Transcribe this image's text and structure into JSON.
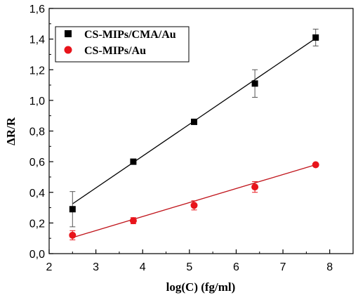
{
  "chart_data": {
    "type": "scatter",
    "xlabel": "log(C) (fg/ml)",
    "ylabel": "ΔR/R",
    "xlim": [
      2,
      8.5
    ],
    "ylim": [
      0,
      1.6
    ],
    "x_ticks": [
      2,
      3,
      4,
      5,
      6,
      7,
      8
    ],
    "x_tick_labels": [
      "2",
      "3",
      "4",
      "5",
      "6",
      "7",
      "8"
    ],
    "y_ticks": [
      0,
      0.2,
      0.4,
      0.6,
      0.8,
      1.0,
      1.2,
      1.4,
      1.6
    ],
    "y_tick_labels": [
      "0,0",
      "0,2",
      "0,4",
      "0,6",
      "0,8",
      "1,0",
      "1,2",
      "1,4",
      "1,6"
    ],
    "grid": false,
    "legend_position": "top-left",
    "series": [
      {
        "name": "CS-MIPs/CMA/Au",
        "marker": "square",
        "color": "#000000",
        "fit_color": "#000000",
        "x": [
          2.5,
          3.8,
          5.1,
          6.4,
          7.7
        ],
        "y": [
          0.29,
          0.6,
          0.86,
          1.11,
          1.41
        ],
        "error": [
          0.115,
          0.0,
          0.0,
          0.09,
          0.055
        ],
        "fit": {
          "x": [
            2.5,
            7.7
          ],
          "y": [
            0.325,
            1.405
          ]
        }
      },
      {
        "name": "CS-MIPs/Au",
        "marker": "circle",
        "color": "#e8141b",
        "fit_color": "#c0141b",
        "x": [
          2.5,
          3.8,
          5.1,
          6.4,
          7.7
        ],
        "y": [
          0.12,
          0.215,
          0.315,
          0.435,
          0.58
        ],
        "error": [
          0.03,
          0.02,
          0.03,
          0.035,
          0.0
        ],
        "fit": {
          "x": [
            2.5,
            7.7
          ],
          "y": [
            0.105,
            0.58
          ]
        }
      }
    ]
  }
}
